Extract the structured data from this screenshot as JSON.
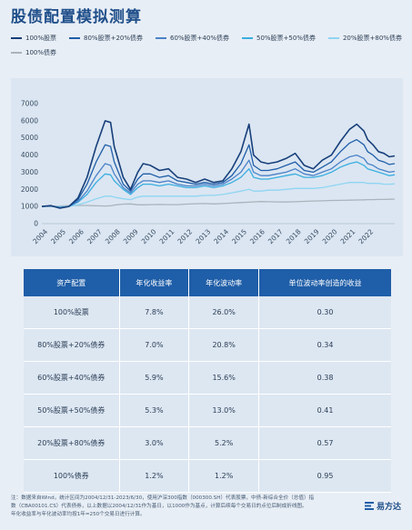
{
  "title": "股债配置模拟测算",
  "colors": {
    "s100": "#173f7a",
    "s80": "#1f5ea8",
    "s60": "#4a82c8",
    "s50": "#3aaee0",
    "s20": "#8fd5f2",
    "b100": "#a9b3bd",
    "header": "#1f5ea8"
  },
  "chart_data": {
    "type": "line",
    "x_ticks": [
      "2004",
      "2005",
      "2006",
      "2007",
      "2008",
      "2009",
      "2010",
      "2011",
      "2012",
      "2013",
      "2014",
      "2015",
      "2016",
      "2017",
      "2018",
      "2019",
      "2020",
      "2021",
      "2022"
    ],
    "y_ticks": [
      "0",
      "1000",
      "2000",
      "3000",
      "4000",
      "5000",
      "6000",
      "7000"
    ],
    "ylim": [
      0,
      7000
    ],
    "xlim": [
      2004.0,
      2023.5
    ],
    "grid": false,
    "legend_position": "top",
    "x": [
      2004.0,
      2004.5,
      2005.0,
      2005.5,
      2006.0,
      2006.5,
      2007.0,
      2007.5,
      2007.8,
      2008.0,
      2008.5,
      2008.9,
      2009.3,
      2009.6,
      2010.0,
      2010.5,
      2011.0,
      2011.5,
      2012.0,
      2012.5,
      2013.0,
      2013.5,
      2014.0,
      2014.5,
      2015.0,
      2015.45,
      2015.7,
      2016.1,
      2016.5,
      2017.0,
      2017.5,
      2018.0,
      2018.5,
      2019.0,
      2019.5,
      2020.0,
      2020.5,
      2021.0,
      2021.4,
      2021.8,
      2022.0,
      2022.3,
      2022.6,
      2022.9,
      2023.2,
      2023.5
    ],
    "series": [
      {
        "name": "100%股票",
        "color_key": "s100",
        "values": [
          1000,
          1050,
          900,
          1000,
          1500,
          2700,
          4500,
          6000,
          5900,
          4500,
          2700,
          2000,
          3000,
          3500,
          3400,
          3100,
          3200,
          2700,
          2600,
          2400,
          2600,
          2400,
          2500,
          3200,
          4200,
          5800,
          4000,
          3600,
          3500,
          3600,
          3800,
          4100,
          3400,
          3200,
          3700,
          4000,
          4800,
          5500,
          5800,
          5400,
          4900,
          4600,
          4200,
          4100,
          3900,
          3950
        ]
      },
      {
        "name": "80%股票+20%债券",
        "color_key": "s80",
        "values": [
          1000,
          1040,
          920,
          1000,
          1400,
          2300,
          3600,
          4600,
          4500,
          3600,
          2300,
          1900,
          2600,
          2900,
          2900,
          2700,
          2800,
          2500,
          2400,
          2300,
          2400,
          2300,
          2400,
          2800,
          3500,
          4600,
          3400,
          3100,
          3100,
          3200,
          3400,
          3600,
          3100,
          3000,
          3300,
          3600,
          4200,
          4700,
          4900,
          4600,
          4200,
          4000,
          3700,
          3600,
          3450,
          3500
        ]
      },
      {
        "name": "60%股票+40%债券",
        "color_key": "s60",
        "values": [
          1000,
          1030,
          940,
          1000,
          1300,
          1900,
          2800,
          3500,
          3400,
          2900,
          2100,
          1800,
          2300,
          2500,
          2500,
          2400,
          2500,
          2300,
          2200,
          2200,
          2300,
          2200,
          2300,
          2600,
          3000,
          3700,
          3000,
          2800,
          2800,
          2900,
          3000,
          3200,
          2900,
          2800,
          3000,
          3200,
          3600,
          3900,
          4000,
          3800,
          3500,
          3400,
          3200,
          3100,
          3000,
          3050
        ]
      },
      {
        "name": "50%股票+50%债券",
        "color_key": "s50",
        "values": [
          1000,
          1025,
          950,
          1000,
          1250,
          1700,
          2400,
          2900,
          2850,
          2500,
          2000,
          1700,
          2100,
          2300,
          2300,
          2200,
          2300,
          2200,
          2100,
          2100,
          2200,
          2100,
          2200,
          2400,
          2700,
          3200,
          2700,
          2600,
          2600,
          2700,
          2800,
          2900,
          2700,
          2700,
          2800,
          3000,
          3300,
          3500,
          3600,
          3400,
          3200,
          3100,
          3000,
          2900,
          2800,
          2850
        ]
      },
      {
        "name": "20%股票+80%债券",
        "color_key": "s20",
        "values": [
          1000,
          1015,
          990,
          1010,
          1100,
          1250,
          1450,
          1600,
          1600,
          1550,
          1450,
          1400,
          1550,
          1600,
          1600,
          1600,
          1600,
          1600,
          1600,
          1600,
          1650,
          1650,
          1700,
          1800,
          1900,
          2000,
          1900,
          1900,
          1950,
          1950,
          2000,
          2050,
          2050,
          2050,
          2100,
          2200,
          2300,
          2400,
          2400,
          2400,
          2350,
          2350,
          2350,
          2300,
          2300,
          2320
        ]
      },
      {
        "name": "100%债券",
        "color_key": "b100",
        "values": [
          1000,
          1010,
          1030,
          1050,
          1060,
          1060,
          1040,
          1030,
          1040,
          1080,
          1140,
          1150,
          1100,
          1100,
          1110,
          1120,
          1110,
          1110,
          1140,
          1160,
          1170,
          1150,
          1170,
          1200,
          1230,
          1250,
          1270,
          1290,
          1280,
          1270,
          1260,
          1280,
          1300,
          1320,
          1330,
          1350,
          1360,
          1370,
          1380,
          1390,
          1400,
          1400,
          1410,
          1410,
          1420,
          1430
        ]
      }
    ]
  },
  "table": {
    "headers": [
      "资产配置",
      "年化收益率",
      "年化波动率",
      "单位波动率创造的收益"
    ],
    "rows": [
      [
        "100%股票",
        "7.8%",
        "26.0%",
        "0.30"
      ],
      [
        "80%股票+20%债券",
        "7.0%",
        "20.8%",
        "0.34"
      ],
      [
        "60%股票+40%债券",
        "5.9%",
        "15.6%",
        "0.38"
      ],
      [
        "50%股票+50%债券",
        "5.3%",
        "13.0%",
        "0.41"
      ],
      [
        "20%股票+80%债券",
        "3.0%",
        "5.2%",
        "0.57"
      ],
      [
        "100%债券",
        "1.2%",
        "1.2%",
        "0.95"
      ]
    ]
  },
  "footnote": {
    "line1": "注：数据来自Wind，统计区间为2004/12/31-2023/6/30，使用沪深300指数（000300.SH）代表股票，中债-新综合全价（总值）指",
    "line2": "数（CBA00101.CS）代表债券，以上数据以2004/12/31作为基日，以1000作为基点，计算后续每个交易日的点位后制成折线图。",
    "line3": "年化收益率与年化波动率均按1年=250个交易日进行计算。"
  },
  "brand": {
    "name": "易方达"
  }
}
